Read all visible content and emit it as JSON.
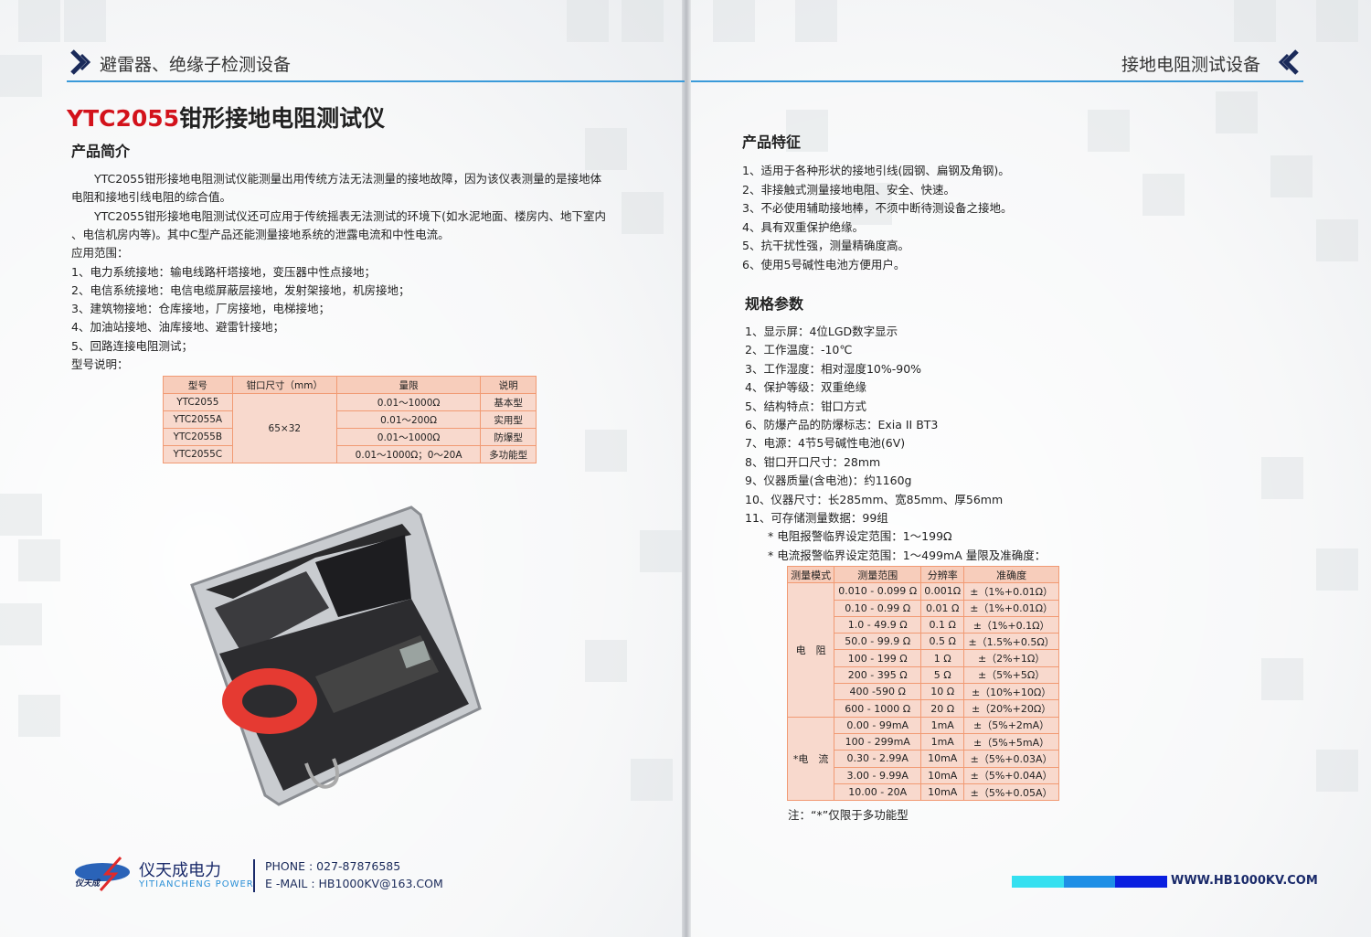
{
  "left_page": {
    "header": "避雷器、绝缘子检测设备",
    "title_model": "YTC2055",
    "title_name": "钳形接地电阻测试仪",
    "intro_heading": "产品简介",
    "lines": [
      "　　YTC2055钳形接地电阻测试仪能测量出用传统方法无法测量的接地故障，因为该仪表测量的是接地体",
      "电阻和接地引线电阻的综合值。",
      "　　YTC2055钳形接地电阻测试仪还可应用于传统摇表无法测试的环境下(如水泥地面、楼房内、地下室内",
      "、电信机房内等)。其中C型产品还能测量接地系统的泄露电流和中性电流。",
      "应用范围：",
      "1、电力系统接地：输电线路杆塔接地，变压器中性点接地；",
      "2、电信系统接地：电信电缆屏蔽层接地，发射架接地，机房接地；",
      "3、建筑物接地：仓库接地，厂房接地，电梯接地；",
      "4、加油站接地、油库接地、避雷针接地；",
      "5、回路连接电阻测试；",
      "型号说明："
    ],
    "model_table": {
      "headers": [
        "型号",
        "钳口尺寸（mm）",
        "量限",
        "说明"
      ],
      "jaw_size": "65×32",
      "rows": [
        {
          "model": "YTC2055",
          "range": "0.01～1000Ω",
          "desc": "基本型"
        },
        {
          "model": "YTC2055A",
          "range": "0.01～200Ω",
          "desc": "实用型"
        },
        {
          "model": "YTC2055B",
          "range": "0.01～1000Ω",
          "desc": "防爆型"
        },
        {
          "model": "YTC2055C",
          "range": "0.01～1000Ω；0～20A",
          "desc": "多功能型"
        }
      ]
    },
    "footer": {
      "brand_cn": "仪天成电力",
      "brand_en": "YITIANCHENG POWER",
      "logo_text": "仪天成",
      "phone": "PHONE : 027-87876585",
      "email": "E -MAIL : HB1000KV@163.COM"
    }
  },
  "right_page": {
    "header": "接地电阻测试设备",
    "features_heading": "产品特征",
    "features": [
      "1、适用于各种形状的接地引线(园钢、扁钢及角钢)。",
      "2、非接触式测量接地电阻、安全、快速。",
      "3、不必使用辅助接地棒，不须中断待测设备之接地。",
      "4、具有双重保护绝缘。",
      "5、抗干扰性强，测量精确度高。",
      "6、使用5号碱性电池方便用户。"
    ],
    "specs_heading": "规格参数",
    "specs": [
      "1、显示屏：4位LGD数字显示",
      "2、工作温度：-10℃",
      "3、工作湿度：相对湿度10%-90%",
      "4、保护等级：双重绝缘",
      "5、结构特点：钳口方式",
      "6、防爆产品的防爆标志：Exia II BT3",
      "7、电源：4节5号碱性电池(6V)",
      "8、钳口开口尺寸：28mm",
      "9、仪器质量(含电池)：约1160g",
      "10、仪器尺寸：长285mm、宽85mm、厚56mm",
      "11、可存储测量数据：99组",
      "　　* 电阻报警临界设定范围：1～199Ω",
      "　　* 电流报警临界设定范围：1～499mA 量限及准确度："
    ],
    "accuracy_table": {
      "headers": [
        "测量模式",
        "测量范围",
        "分辨率",
        "准确度"
      ],
      "groups": [
        {
          "mode": "电　阻",
          "rows": [
            [
              "0.010 - 0.099 Ω",
              "0.001Ω",
              "±（1%+0.01Ω）"
            ],
            [
              "0.10 - 0.99 Ω",
              "0.01 Ω",
              "±（1%+0.01Ω）"
            ],
            [
              "1.0 - 49.9 Ω",
              "0.1 Ω",
              "±（1%+0.1Ω）"
            ],
            [
              "50.0 - 99.9 Ω",
              "0.5 Ω",
              "±（1.5%+0.5Ω）"
            ],
            [
              "100 - 199 Ω",
              "1 Ω",
              "±（2%+1Ω）"
            ],
            [
              "200 - 395 Ω",
              "5 Ω",
              "±（5%+5Ω）"
            ],
            [
              "400 -590 Ω",
              "10 Ω",
              "±（10%+10Ω）"
            ],
            [
              "600 - 1000 Ω",
              "20 Ω",
              "±（20%+20Ω）"
            ]
          ]
        },
        {
          "mode": "*电　流",
          "rows": [
            [
              "0.00 - 99mA",
              "1mA",
              "±（5%+2mA）"
            ],
            [
              "100 - 299mA",
              "1mA",
              "±（5%+5mA）"
            ],
            [
              "0.30 - 2.99A",
              "10mA",
              "±（5%+0.03A）"
            ],
            [
              "3.00 - 9.99A",
              "10mA",
              "±（5%+0.04A）"
            ],
            [
              "10.00 - 20A",
              "10mA",
              "±（5%+0.05A）"
            ]
          ]
        }
      ]
    },
    "note": "注：“*”仅限于多功能型",
    "website": "WWW.HB1000KV.COM"
  },
  "colors": {
    "accent_red": "#d3121b",
    "header_blue": "#3a9ad9",
    "table_border": "#f19a73",
    "table_fill": "#f8d9cd",
    "bar_colors": [
      "#35e0f0",
      "#1e8fe6",
      "#0a1fe0"
    ]
  }
}
